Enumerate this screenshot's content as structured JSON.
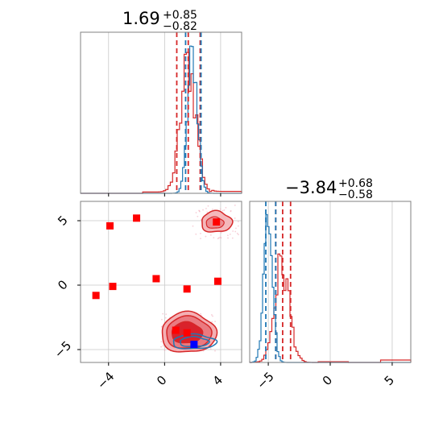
{
  "colors": {
    "primary": "#d62728",
    "secondary": "#1f77b4",
    "marker_red": "#ff0000",
    "marker_blue": "#0000ff"
  },
  "titles": {
    "param1": {
      "value": "1.69",
      "plus": "+0.85",
      "minus": "−0.82"
    },
    "param2": {
      "value": "−3.84",
      "plus": "+0.68",
      "minus": "−0.58"
    }
  },
  "chart_data": [
    {
      "type": "histogram",
      "panel": "top-left (param 1 marginal)",
      "xlim": [
        -6,
        5.5
      ],
      "xticks": [
        -4,
        0,
        4
      ],
      "series": [
        {
          "color": "#1f77b4",
          "center": 2.0,
          "width": 0.35
        },
        {
          "color": "#d62728",
          "center": 1.7,
          "width": 0.55
        }
      ],
      "quantiles": {
        "blue": [
          1.5,
          2.6
        ],
        "red": [
          0.87,
          1.69,
          2.54
        ]
      }
    },
    {
      "type": "scatter",
      "panel": "bottom-left (param 2 vs param 1)",
      "xlim": [
        -6,
        5.5
      ],
      "ylim": [
        -6,
        6.5
      ],
      "xticks": [
        -4,
        0,
        4
      ],
      "yticks": [
        -5,
        0,
        5
      ],
      "xtick_labels": [
        "−4",
        "0",
        "4"
      ],
      "ytick_labels": [
        "−5",
        "0",
        "5"
      ],
      "red_squares": [
        {
          "x": -3.9,
          "y": 4.6
        },
        {
          "x": -2.0,
          "y": 5.2
        },
        {
          "x": 3.7,
          "y": 4.9
        },
        {
          "x": -0.6,
          "y": 0.5
        },
        {
          "x": -3.7,
          "y": -0.1
        },
        {
          "x": -4.9,
          "y": -0.8
        },
        {
          "x": 1.6,
          "y": -0.3
        },
        {
          "x": 3.8,
          "y": 0.3
        },
        {
          "x": 0.8,
          "y": -3.5
        },
        {
          "x": 1.6,
          "y": -3.7
        }
      ],
      "blue_squares": [
        {
          "x": 2.1,
          "y": -4.6
        }
      ],
      "contours": {
        "red_main": {
          "cx": 1.7,
          "cy": -3.7
        },
        "red_upper": {
          "cx": 3.7,
          "cy": 4.9
        },
        "blue_main": {
          "cx": 2.1,
          "cy": -4.4
        }
      }
    },
    {
      "type": "histogram",
      "panel": "bottom-right (param 2 marginal)",
      "xlim": [
        -6.5,
        6.5
      ],
      "xticks": [
        -5,
        0,
        5
      ],
      "xtick_labels": [
        "−5",
        "0",
        "5"
      ],
      "series": [
        {
          "color": "#1f77b4",
          "center": -5.0,
          "width": 0.35
        },
        {
          "color": "#d62728",
          "center": -3.9,
          "width": 0.6
        }
      ],
      "quantiles": {
        "blue": [
          -5.2,
          -4.4
        ],
        "red": [
          -4.4,
          -3.84,
          -3.2
        ]
      }
    }
  ]
}
